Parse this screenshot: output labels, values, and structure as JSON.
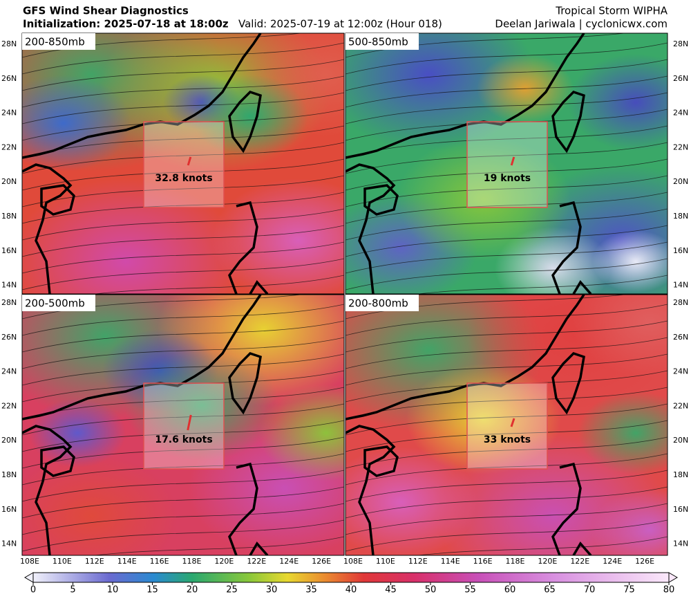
{
  "header": {
    "title": "GFS Wind Shear Diagnostics",
    "initialization": "Initialization: 2025-07-18 at 18:00z",
    "valid": "Valid: 2025-07-19 at 12:00z (Hour 018)",
    "storm": "Tropical Storm WIPHA",
    "credit": "Deelan Jariwala | cyclonicwx.com"
  },
  "panels": [
    {
      "label": "200-850mb",
      "shear": "32.8 knots"
    },
    {
      "label": "500-850mb",
      "shear": "19 knots"
    },
    {
      "label": "200-500mb",
      "shear": "17.6 knots"
    },
    {
      "label": "200-800mb",
      "shear": "33 knots"
    }
  ],
  "lat_labels": [
    "28N",
    "26N",
    "24N",
    "22N",
    "20N",
    "18N",
    "16N",
    "14N"
  ],
  "lon_labels": [
    "108E",
    "110E",
    "112E",
    "114E",
    "116E",
    "118E",
    "120E",
    "122E",
    "124E",
    "126E"
  ],
  "colorbar": {
    "ticks": [
      0,
      5,
      10,
      15,
      20,
      25,
      30,
      35,
      40,
      45,
      50,
      55,
      60,
      65,
      70,
      75,
      80
    ]
  }
}
